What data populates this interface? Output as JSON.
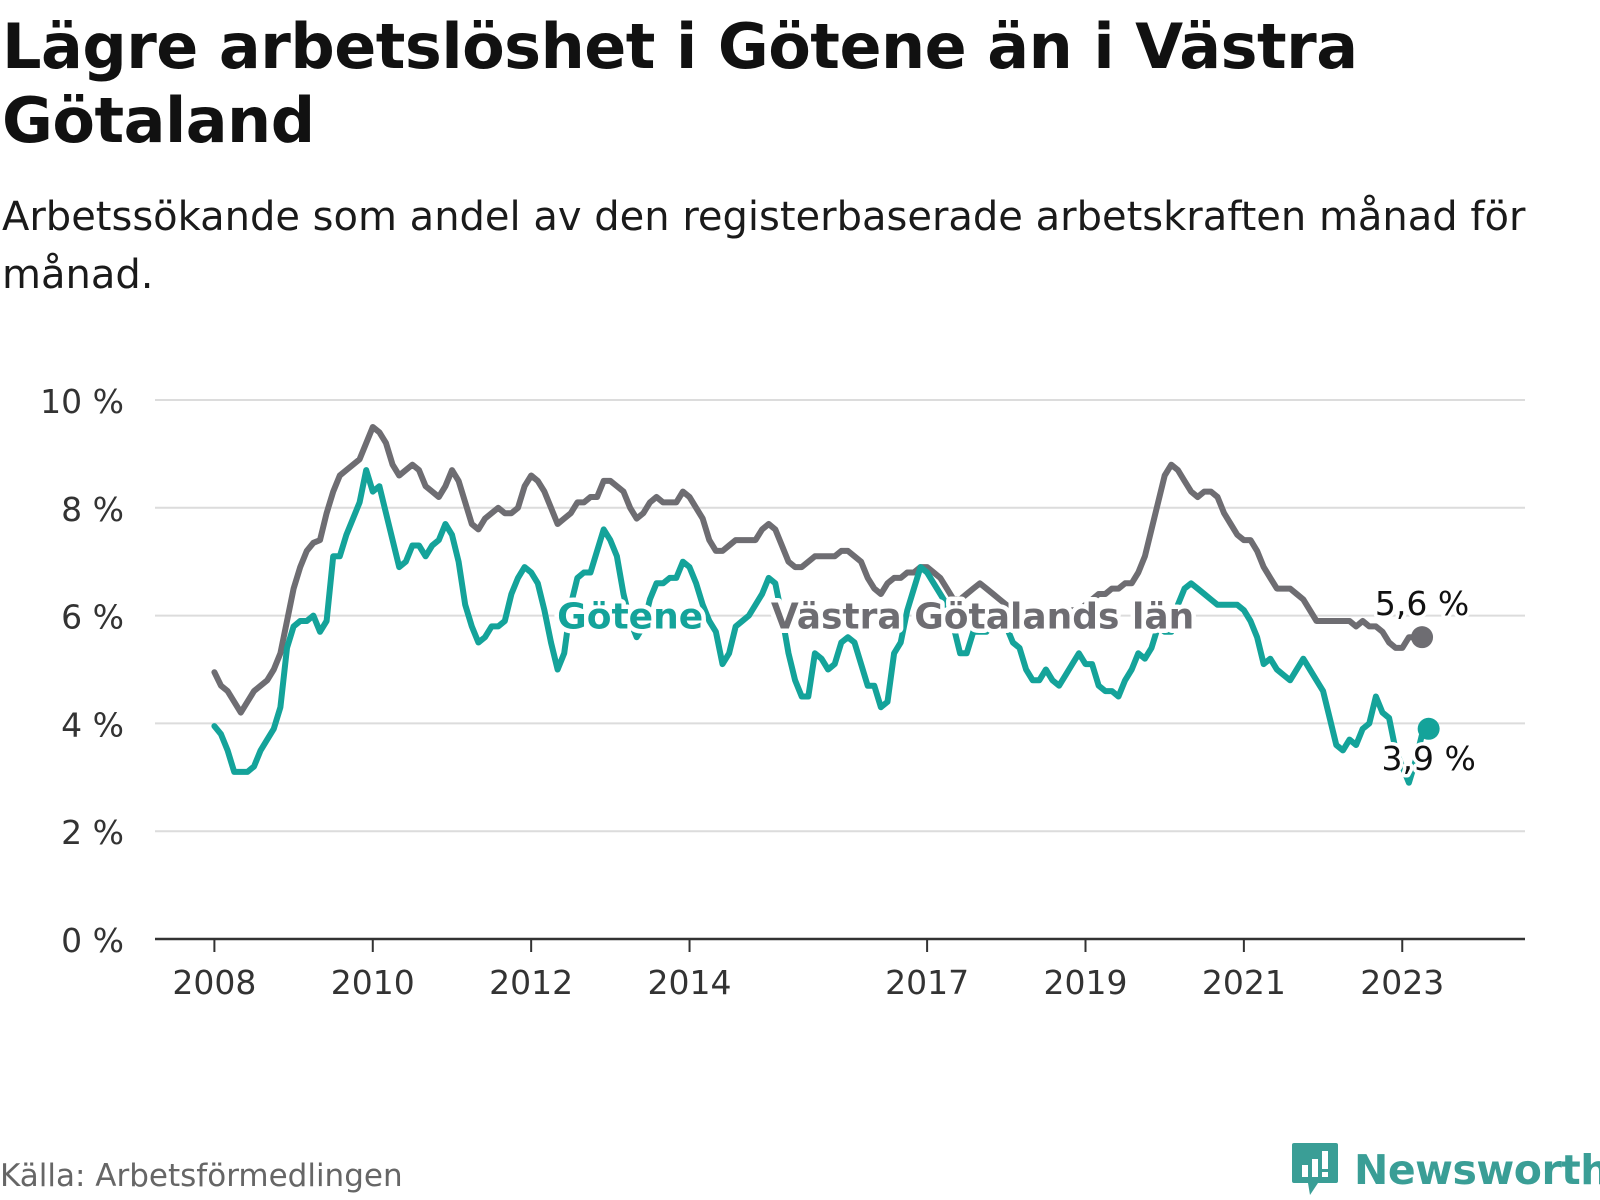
{
  "title": "Lägre arbetslöshet i Götene än i Västra Götaland",
  "subtitle": "Arbetssökande som andel av den registerbaserade arbetskraften månad för månad.",
  "source": "Källa: Arbetsförmedlingen",
  "brand": {
    "name": "Newsworthy",
    "icon": "newsworthy-logo-icon",
    "color": "#3a9e96"
  },
  "chart_data": {
    "type": "line",
    "x_start": 2008.0,
    "x_step": 0.0833333,
    "x_ticks": [
      2008,
      2010,
      2012,
      2014,
      2017,
      2019,
      2021,
      2023
    ],
    "x_tick_labels": [
      "2008",
      "2010",
      "2012",
      "2014",
      "2017",
      "2019",
      "2021",
      "2023"
    ],
    "y_ticks": [
      0,
      2,
      4,
      6,
      8,
      10
    ],
    "y_tick_labels": [
      "0 %",
      "2 %",
      "4 %",
      "6 %",
      "8 %",
      "10 %"
    ],
    "ylim": [
      0,
      10
    ],
    "xlim": [
      2007.25,
      2024.55
    ],
    "series": [
      {
        "name": "Västra Götalands län",
        "color": "#6e6d72",
        "end_label": "5,6 %",
        "values": [
          4.95,
          4.7,
          4.6,
          4.4,
          4.2,
          4.4,
          4.6,
          4.7,
          4.8,
          5.0,
          5.3,
          5.9,
          6.5,
          6.9,
          7.2,
          7.35,
          7.4,
          7.9,
          8.3,
          8.6,
          8.7,
          8.8,
          8.9,
          9.2,
          9.5,
          9.4,
          9.2,
          8.8,
          8.6,
          8.7,
          8.8,
          8.7,
          8.4,
          8.3,
          8.2,
          8.4,
          8.7,
          8.5,
          8.1,
          7.7,
          7.6,
          7.8,
          7.9,
          8.0,
          7.9,
          7.9,
          8.0,
          8.4,
          8.6,
          8.5,
          8.3,
          8.0,
          7.7,
          7.8,
          7.9,
          8.1,
          8.1,
          8.2,
          8.2,
          8.5,
          8.5,
          8.4,
          8.3,
          8.0,
          7.8,
          7.9,
          8.1,
          8.2,
          8.1,
          8.1,
          8.1,
          8.3,
          8.2,
          8.0,
          7.8,
          7.4,
          7.2,
          7.2,
          7.3,
          7.4,
          7.4,
          7.4,
          7.4,
          7.6,
          7.7,
          7.6,
          7.3,
          7.0,
          6.9,
          6.9,
          7.0,
          7.1,
          7.1,
          7.1,
          7.1,
          7.2,
          7.2,
          7.1,
          7.0,
          6.7,
          6.5,
          6.4,
          6.6,
          6.7,
          6.7,
          6.8,
          6.8,
          6.9,
          6.9,
          6.8,
          6.7,
          6.5,
          6.3,
          6.3,
          6.4,
          6.5,
          6.6,
          6.5,
          6.4,
          6.3,
          6.2,
          6.1,
          6.0,
          6.0,
          6.0,
          6.0,
          6.0,
          6.0,
          6.0,
          6.0,
          6.1,
          6.1,
          6.2,
          6.3,
          6.4,
          6.4,
          6.5,
          6.5,
          6.6,
          6.6,
          6.8,
          7.1,
          7.6,
          8.1,
          8.6,
          8.8,
          8.7,
          8.5,
          8.3,
          8.2,
          8.3,
          8.3,
          8.2,
          7.9,
          7.7,
          7.5,
          7.4,
          7.4,
          7.2,
          6.9,
          6.7,
          6.5,
          6.5,
          6.5,
          6.4,
          6.3,
          6.1,
          5.9,
          5.9,
          5.9,
          5.9,
          5.9,
          5.9,
          5.8,
          5.9,
          5.8,
          5.8,
          5.7,
          5.5,
          5.4,
          5.4,
          5.6,
          5.6,
          5.6
        ]
      },
      {
        "name": "Götene",
        "color": "#14a39a",
        "end_label": "3,9 %",
        "values": [
          3.95,
          3.8,
          3.5,
          3.1,
          3.1,
          3.1,
          3.2,
          3.5,
          3.7,
          3.9,
          4.3,
          5.4,
          5.8,
          5.9,
          5.9,
          6.0,
          5.7,
          5.9,
          7.1,
          7.1,
          7.5,
          7.8,
          8.1,
          8.7,
          8.3,
          8.4,
          7.9,
          7.4,
          6.9,
          7.0,
          7.3,
          7.3,
          7.1,
          7.3,
          7.4,
          7.7,
          7.5,
          7.0,
          6.2,
          5.8,
          5.5,
          5.6,
          5.8,
          5.8,
          5.9,
          6.4,
          6.7,
          6.9,
          6.8,
          6.6,
          6.1,
          5.5,
          5.0,
          5.3,
          6.2,
          6.7,
          6.8,
          6.8,
          7.2,
          7.6,
          7.4,
          7.1,
          6.4,
          5.9,
          5.6,
          5.8,
          6.3,
          6.6,
          6.6,
          6.7,
          6.7,
          7.0,
          6.9,
          6.6,
          6.2,
          5.9,
          5.7,
          5.1,
          5.3,
          5.8,
          5.9,
          6.0,
          6.2,
          6.4,
          6.7,
          6.6,
          6.0,
          5.3,
          4.8,
          4.5,
          4.5,
          5.3,
          5.2,
          5.0,
          5.1,
          5.5,
          5.6,
          5.5,
          5.1,
          4.7,
          4.7,
          4.3,
          4.4,
          5.3,
          5.5,
          6.1,
          6.5,
          6.9,
          6.8,
          6.6,
          6.4,
          6.2,
          5.8,
          5.3,
          5.3,
          5.7,
          5.7,
          5.7,
          5.9,
          5.9,
          5.8,
          5.5,
          5.4,
          5.0,
          4.8,
          4.8,
          5.0,
          4.8,
          4.7,
          4.9,
          5.1,
          5.3,
          5.1,
          5.1,
          4.7,
          4.6,
          4.6,
          4.5,
          4.8,
          5.0,
          5.3,
          5.2,
          5.4,
          5.8,
          5.7,
          5.7,
          6.2,
          6.5,
          6.6,
          6.5,
          6.4,
          6.3,
          6.2,
          6.2,
          6.2,
          6.2,
          6.1,
          5.9,
          5.6,
          5.1,
          5.2,
          5.0,
          4.9,
          4.8,
          5.0,
          5.2,
          5.0,
          4.8,
          4.6,
          4.1,
          3.6,
          3.5,
          3.7,
          3.6,
          3.9,
          4.0,
          4.5,
          4.2,
          4.1,
          3.5,
          3.2,
          2.9,
          3.3,
          3.8,
          3.9
        ]
      }
    ],
    "annotations": [
      {
        "text": "Götene",
        "series": "Götene",
        "at_x": 2013.25,
        "at_y": 6.0
      },
      {
        "text": "Västra Götalands län",
        "series": "Västra Götalands län",
        "at_x": 2017.7,
        "at_y": 6.0
      }
    ]
  }
}
